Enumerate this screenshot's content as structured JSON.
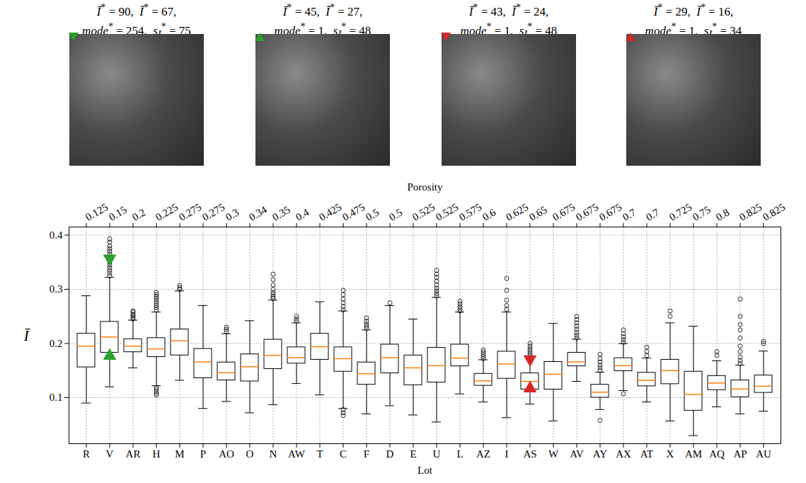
{
  "images": [
    {
      "stats": [
        {
          "symbol": "Ī",
          "sup": "*",
          "value": 90
        },
        {
          "symbol": "Ĩ",
          "sup": "*",
          "value": 67
        },
        {
          "symbol": "mode",
          "sup": "*",
          "value": 254
        },
        {
          "symbol": "s",
          "sub": "I",
          "sup": "*",
          "value": 75
        }
      ],
      "marker": "triangle-down",
      "color": "#2ca02c"
    },
    {
      "stats": [
        {
          "symbol": "Ī",
          "sup": "*",
          "value": 45
        },
        {
          "symbol": "Ĩ",
          "sup": "*",
          "value": 27
        },
        {
          "symbol": "mode",
          "sup": "*",
          "value": 1
        },
        {
          "symbol": "s",
          "sub": "I",
          "sup": "*",
          "value": 48
        }
      ],
      "marker": "triangle-up",
      "color": "#2ca02c"
    },
    {
      "stats": [
        {
          "symbol": "Ī",
          "sup": "*",
          "value": 43
        },
        {
          "symbol": "Ĩ",
          "sup": "*",
          "value": 24
        },
        {
          "symbol": "mode",
          "sup": "*",
          "value": 1
        },
        {
          "symbol": "s",
          "sub": "I",
          "sup": "*",
          "value": 48
        }
      ],
      "marker": "triangle-down",
      "color": "#d62728"
    },
    {
      "stats": [
        {
          "symbol": "Ī",
          "sup": "*",
          "value": 29
        },
        {
          "symbol": "Ĩ",
          "sup": "*",
          "value": 16
        },
        {
          "symbol": "mode",
          "sup": "*",
          "value": 1
        },
        {
          "symbol": "s",
          "sub": "I",
          "sup": "*",
          "value": 34
        }
      ],
      "marker": "triangle-up",
      "color": "#d62728"
    }
  ],
  "chart_data": {
    "type": "box",
    "x_label": "Lot",
    "x2_label": "Porosity",
    "y_label": "Ī",
    "categories": [
      "R",
      "V",
      "AR",
      "H",
      "M",
      "P",
      "AO",
      "O",
      "N",
      "AW",
      "T",
      "C",
      "F",
      "D",
      "E",
      "U",
      "L",
      "AZ",
      "I",
      "AS",
      "W",
      "AV",
      "AY",
      "AX",
      "AT",
      "X",
      "AM",
      "AQ",
      "AP",
      "AU"
    ],
    "porosity": [
      0.125,
      0.15,
      0.2,
      0.225,
      0.275,
      0.275,
      0.3,
      0.34,
      0.35,
      0.4,
      0.425,
      0.475,
      0.5,
      0.5,
      0.525,
      0.525,
      0.575,
      0.6,
      0.625,
      0.65,
      0.675,
      0.675,
      0.675,
      0.7,
      0.7,
      0.725,
      0.75,
      0.8,
      0.825,
      0.825
    ],
    "boxes": [
      {
        "whislo": 0.09,
        "q1": 0.156,
        "med": 0.195,
        "q3": 0.218,
        "whishi": 0.288,
        "fliers": []
      },
      {
        "whislo": 0.12,
        "q1": 0.183,
        "med": 0.212,
        "q3": 0.24,
        "whishi": 0.322,
        "fliers": [
          0.325,
          0.33,
          0.335,
          0.34,
          0.345,
          0.35,
          0.355,
          0.36,
          0.365,
          0.37,
          0.375,
          0.38,
          0.387,
          0.393
        ]
      },
      {
        "whislo": 0.155,
        "q1": 0.184,
        "med": 0.195,
        "q3": 0.208,
        "whishi": 0.243,
        "fliers": [
          0.245,
          0.248,
          0.251,
          0.254,
          0.258,
          0.26
        ]
      },
      {
        "whislo": 0.122,
        "q1": 0.175,
        "med": 0.19,
        "q3": 0.21,
        "whishi": 0.258,
        "fliers": [
          0.262,
          0.266,
          0.27,
          0.274,
          0.278,
          0.282,
          0.286,
          0.29,
          0.294,
          0.105,
          0.108,
          0.112,
          0.116,
          0.119
        ]
      },
      {
        "whislo": 0.132,
        "q1": 0.178,
        "med": 0.205,
        "q3": 0.226,
        "whishi": 0.297,
        "fliers": [
          0.3,
          0.303,
          0.307
        ]
      },
      {
        "whislo": 0.08,
        "q1": 0.136,
        "med": 0.166,
        "q3": 0.19,
        "whishi": 0.27,
        "fliers": []
      },
      {
        "whislo": 0.093,
        "q1": 0.132,
        "med": 0.146,
        "q3": 0.165,
        "whishi": 0.218,
        "fliers": [
          0.222,
          0.226,
          0.23
        ]
      },
      {
        "whislo": 0.072,
        "q1": 0.13,
        "med": 0.157,
        "q3": 0.18,
        "whishi": 0.242,
        "fliers": []
      },
      {
        "whislo": 0.087,
        "q1": 0.153,
        "med": 0.178,
        "q3": 0.207,
        "whishi": 0.28,
        "fliers": [
          0.283,
          0.286,
          0.29,
          0.294,
          0.3,
          0.308,
          0.318,
          0.328
        ]
      },
      {
        "whislo": 0.126,
        "q1": 0.163,
        "med": 0.174,
        "q3": 0.193,
        "whishi": 0.238,
        "fliers": [
          0.241,
          0.245,
          0.25
        ]
      },
      {
        "whislo": 0.105,
        "q1": 0.17,
        "med": 0.194,
        "q3": 0.218,
        "whishi": 0.277,
        "fliers": []
      },
      {
        "whislo": 0.08,
        "q1": 0.148,
        "med": 0.172,
        "q3": 0.193,
        "whishi": 0.26,
        "fliers": [
          0.262,
          0.268,
          0.275,
          0.282,
          0.29,
          0.298,
          0.067,
          0.072,
          0.078
        ]
      },
      {
        "whislo": 0.07,
        "q1": 0.124,
        "med": 0.144,
        "q3": 0.165,
        "whishi": 0.225,
        "fliers": [
          0.228,
          0.232,
          0.236,
          0.241,
          0.247
        ]
      },
      {
        "whislo": 0.085,
        "q1": 0.145,
        "med": 0.174,
        "q3": 0.198,
        "whishi": 0.27,
        "fliers": [
          0.275
        ]
      },
      {
        "whislo": 0.068,
        "q1": 0.123,
        "med": 0.155,
        "q3": 0.178,
        "whishi": 0.245,
        "fliers": []
      },
      {
        "whislo": 0.055,
        "q1": 0.128,
        "med": 0.159,
        "q3": 0.192,
        "whishi": 0.285,
        "fliers": [
          0.288,
          0.292,
          0.297,
          0.302,
          0.308,
          0.315,
          0.322,
          0.328,
          0.335
        ]
      },
      {
        "whislo": 0.107,
        "q1": 0.158,
        "med": 0.173,
        "q3": 0.198,
        "whishi": 0.258,
        "fliers": [
          0.26,
          0.264,
          0.268,
          0.273,
          0.278
        ]
      },
      {
        "whislo": 0.092,
        "q1": 0.122,
        "med": 0.131,
        "q3": 0.144,
        "whishi": 0.17,
        "fliers": [
          0.172,
          0.176,
          0.18,
          0.184,
          0.188
        ]
      },
      {
        "whislo": 0.063,
        "q1": 0.135,
        "med": 0.162,
        "q3": 0.185,
        "whishi": 0.258,
        "fliers": [
          0.263,
          0.27,
          0.28,
          0.298,
          0.32
        ]
      },
      {
        "whislo": 0.088,
        "q1": 0.115,
        "med": 0.13,
        "q3": 0.145,
        "whishi": 0.175,
        "fliers": [
          0.178,
          0.182,
          0.186,
          0.19,
          0.195,
          0.2
        ]
      },
      {
        "whislo": 0.057,
        "q1": 0.115,
        "med": 0.143,
        "q3": 0.166,
        "whishi": 0.237,
        "fliers": []
      },
      {
        "whislo": 0.13,
        "q1": 0.158,
        "med": 0.166,
        "q3": 0.183,
        "whishi": 0.208,
        "fliers": [
          0.21,
          0.215,
          0.22,
          0.226,
          0.232,
          0.238,
          0.244,
          0.25
        ]
      },
      {
        "whislo": 0.078,
        "q1": 0.1,
        "med": 0.11,
        "q3": 0.124,
        "whishi": 0.147,
        "fliers": [
          0.15,
          0.155,
          0.16,
          0.166,
          0.172,
          0.18,
          0.058
        ]
      },
      {
        "whislo": 0.113,
        "q1": 0.149,
        "med": 0.159,
        "q3": 0.173,
        "whishi": 0.2,
        "fliers": [
          0.202,
          0.207,
          0.212,
          0.218,
          0.225,
          0.107
        ]
      },
      {
        "whislo": 0.092,
        "q1": 0.121,
        "med": 0.132,
        "q3": 0.146,
        "whishi": 0.173,
        "fliers": [
          0.178,
          0.185,
          0.193
        ]
      },
      {
        "whislo": 0.057,
        "q1": 0.125,
        "med": 0.15,
        "q3": 0.17,
        "whishi": 0.238,
        "fliers": [
          0.25,
          0.26
        ]
      },
      {
        "whislo": 0.03,
        "q1": 0.076,
        "med": 0.106,
        "q3": 0.148,
        "whishi": 0.232,
        "fliers": []
      },
      {
        "whislo": 0.083,
        "q1": 0.114,
        "med": 0.127,
        "q3": 0.14,
        "whishi": 0.168,
        "fliers": [
          0.178,
          0.185
        ]
      },
      {
        "whislo": 0.07,
        "q1": 0.101,
        "med": 0.116,
        "q3": 0.132,
        "whishi": 0.16,
        "fliers": [
          0.163,
          0.168,
          0.175,
          0.185,
          0.195,
          0.21,
          0.225,
          0.235,
          0.25,
          0.282
        ]
      },
      {
        "whislo": 0.075,
        "q1": 0.109,
        "med": 0.121,
        "q3": 0.141,
        "whishi": 0.186,
        "fliers": [
          0.2,
          0.204
        ]
      }
    ],
    "color": "#ff7f0e",
    "markers": [
      {
        "lot": "V",
        "value": 0.357,
        "marker": "triangle-down",
        "color": "#2ca02c"
      },
      {
        "lot": "V",
        "value": 0.177,
        "marker": "triangle-up",
        "color": "#2ca02c"
      },
      {
        "lot": "AS",
        "value": 0.171,
        "marker": "triangle-down",
        "color": "#d62728"
      },
      {
        "lot": "AS",
        "value": 0.117,
        "marker": "triangle-up",
        "color": "#d62728"
      }
    ],
    "ylim": [
      0.015,
      0.415
    ],
    "yticks": [
      0.1,
      0.2,
      0.3,
      0.4
    ],
    "grid": true
  }
}
